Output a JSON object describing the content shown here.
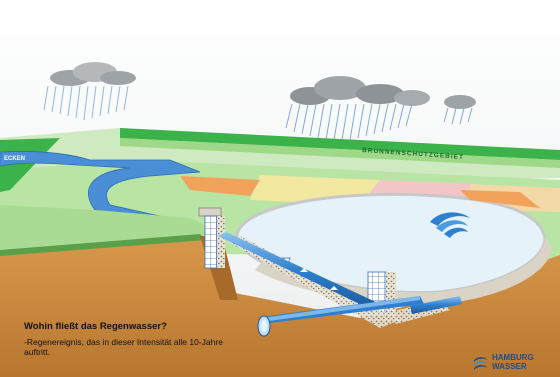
{
  "labels": {
    "protection_zone": "BRUNNENSCHUTZGEBIET",
    "stream": "ECKEN"
  },
  "caption": {
    "question": "Wohin fließt das Regenwasser?",
    "description": "-Regenereignis, das in dieser Intensität alle 10-Jahre auftritt."
  },
  "logo": {
    "line1": "HAMBURG",
    "line2": "WASSER"
  },
  "colors": {
    "sky": "#f3f4f5",
    "grass": "#b8e4a4",
    "hedge": "#3bb24a",
    "water": "#4a8fd6",
    "soil": "#c98842",
    "pond": "#e6f2fa",
    "pipe": "#2f7fd0",
    "brand": "#1b4f8c"
  }
}
